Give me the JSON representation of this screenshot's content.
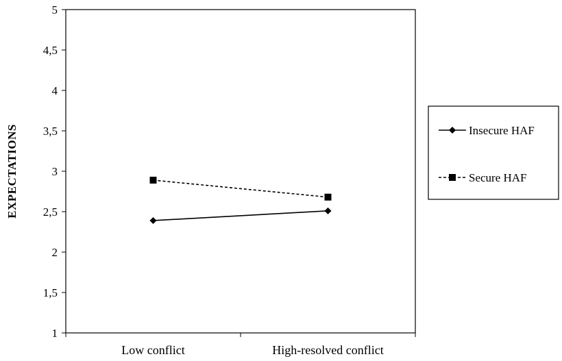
{
  "chart_data": {
    "type": "line",
    "title": "",
    "xlabel": "",
    "ylabel": "EXPECTATIONS",
    "categories": [
      "Low conflict",
      "High-resolved conflict"
    ],
    "ylim": [
      1,
      5
    ],
    "yticks": [
      "1",
      "1,5",
      "2",
      "2,5",
      "3",
      "3,5",
      "4",
      "4,5",
      "5"
    ],
    "ytick_values": [
      1,
      1.5,
      2,
      2.5,
      3,
      3.5,
      4,
      4.5,
      5
    ],
    "grid": false,
    "legend_position": "right",
    "series": [
      {
        "name": "Insecure HAF",
        "values": [
          2.39,
          2.51
        ],
        "line": "solid",
        "marker": "diamond",
        "color": "#000000"
      },
      {
        "name": "Secure HAF",
        "values": [
          2.89,
          2.68
        ],
        "line": "dashed",
        "marker": "square",
        "color": "#000000"
      }
    ]
  }
}
